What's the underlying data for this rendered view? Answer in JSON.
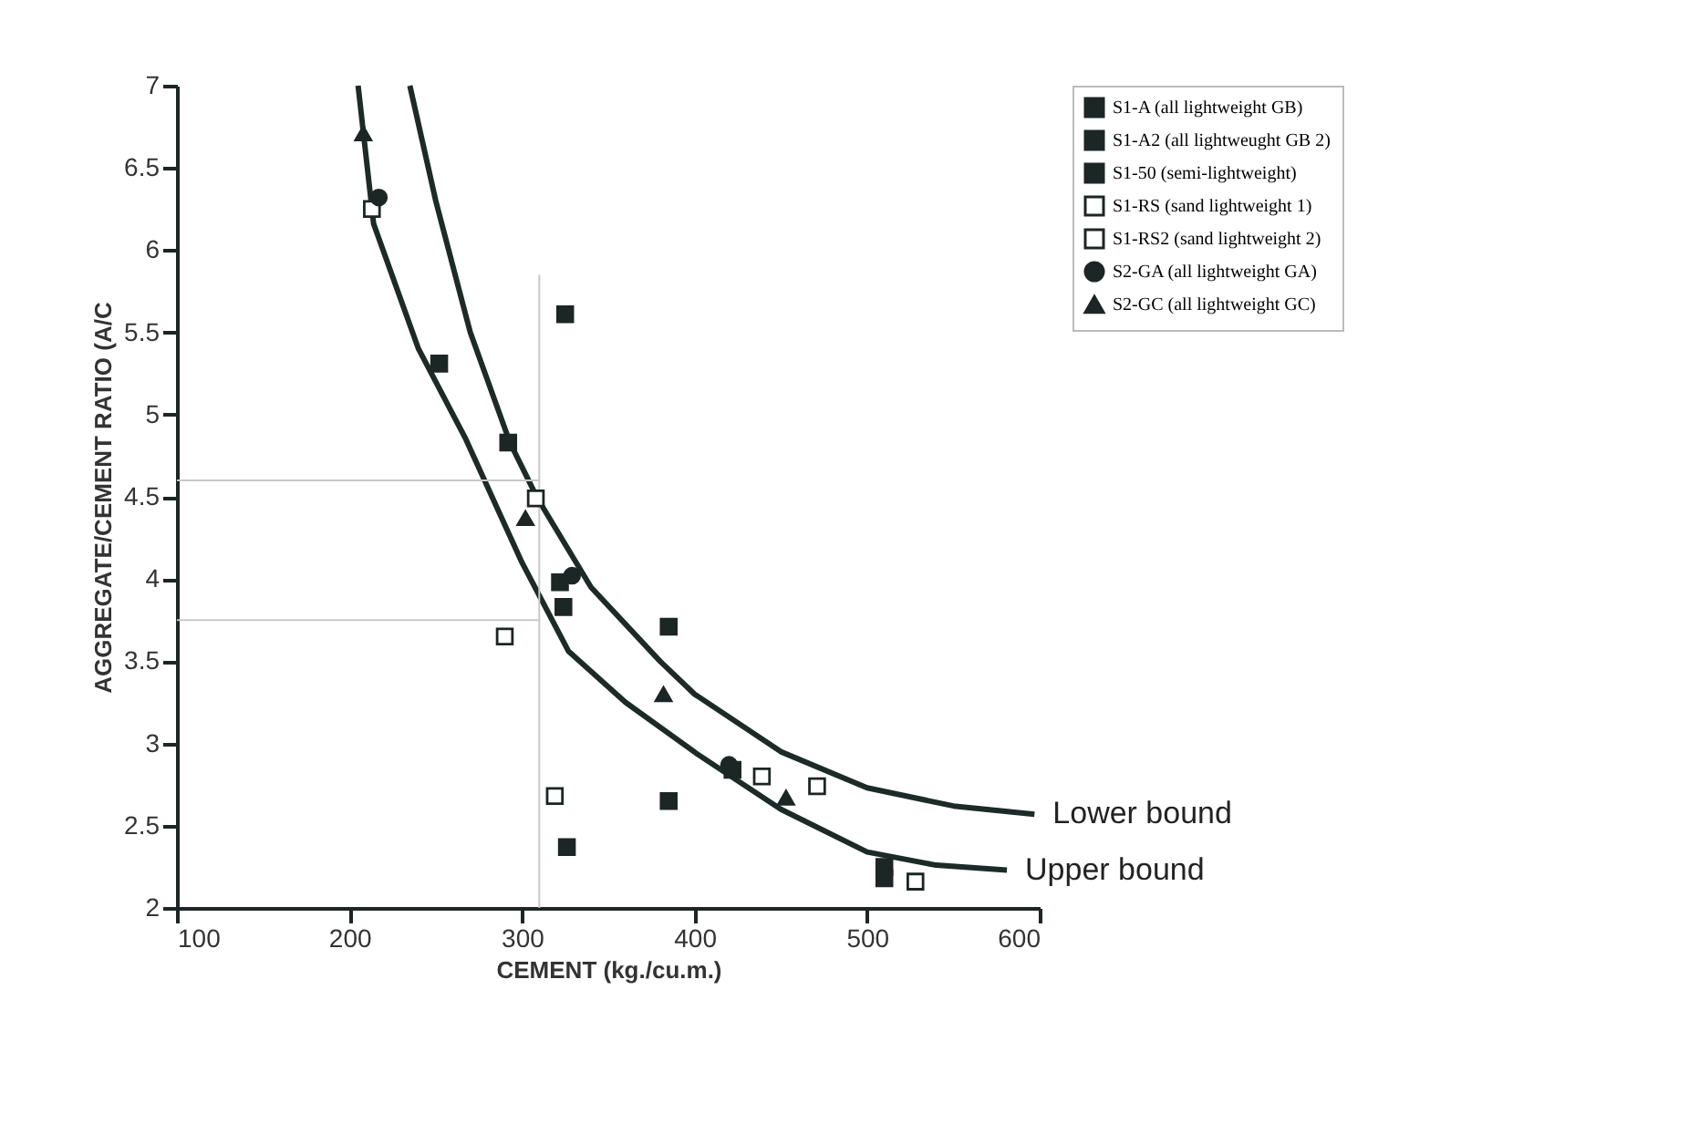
{
  "chart_data": {
    "type": "scatter",
    "xlabel": "CEMENT (kg./cu.m.)",
    "ylabel": "AGGREGATE/CEMENT RATIO (A/C",
    "xlim": [
      100,
      600
    ],
    "xticks": [
      100,
      200,
      300,
      400,
      500,
      600
    ],
    "ylim": [
      2,
      7
    ],
    "yticks": [
      2,
      2.5,
      3,
      3.5,
      4,
      4.5,
      5,
      5.5,
      6,
      6.5,
      7
    ],
    "grid": false,
    "legend": "right",
    "series": [
      {
        "name": "S1-A (all lightweight GB)",
        "marker": "square",
        "color": "#1c2624",
        "x": [
          252,
          325,
          292
        ],
        "values": [
          5.31,
          5.61,
          4.83
        ]
      },
      {
        "name": "S1-A2 (all lightweught GB 2)",
        "marker": "square",
        "color": "#1c2624",
        "x": [
          322,
          324,
          385,
          385
        ],
        "values": [
          3.98,
          3.83,
          3.71,
          2.65
        ]
      },
      {
        "name": "S1-50 (semi-lightweight)",
        "marker": "square",
        "color": "#1c2624",
        "x": [
          326,
          422,
          510,
          510
        ],
        "values": [
          2.37,
          2.84,
          2.25,
          2.18
        ]
      },
      {
        "name": "S1-RS (sand lightweight 1)",
        "marker": "square",
        "color": "#ffffff",
        "x": [
          213,
          290,
          308
        ],
        "values": [
          6.25,
          3.65,
          4.49
        ]
      },
      {
        "name": "S1-RS2 (sand lightweight 2)",
        "marker": "square",
        "color": "#ffffff",
        "x": [
          319,
          439,
          471,
          528
        ],
        "values": [
          2.68,
          2.8,
          2.74,
          2.16
        ]
      },
      {
        "name": "S2-GA (all lightweight GA)",
        "marker": "circle",
        "color": "#1c2624",
        "x": [
          217,
          329,
          420
        ],
        "values": [
          6.32,
          4.02,
          2.87
        ]
      },
      {
        "name": "S2-GC (all lightweight GC)",
        "marker": "triangle",
        "color": "#1c2624",
        "x": [
          208,
          302,
          382,
          453
        ],
        "values": [
          6.71,
          4.37,
          3.3,
          2.67
        ]
      },
      {
        "name": "Lower bound",
        "type": "line",
        "line_style": "solid",
        "color": "#1c2b27",
        "x": [
          235,
          250,
          270,
          293,
          309,
          340,
          380,
          400,
          450,
          500,
          550,
          597
        ],
        "values": [
          7.0,
          6.3,
          5.5,
          4.83,
          4.49,
          3.95,
          3.5,
          3.3,
          2.95,
          2.73,
          2.62,
          2.57
        ]
      },
      {
        "name": "Upper bound",
        "type": "line",
        "line_style": "solid",
        "color": "#1c2b27",
        "x": [
          205,
          214,
          240,
          267,
          300,
          327,
          360,
          401,
          450,
          500,
          540,
          581
        ],
        "values": [
          7.0,
          6.16,
          5.4,
          4.86,
          4.1,
          3.56,
          3.25,
          2.94,
          2.6,
          2.34,
          2.26,
          2.23
        ]
      },
      {
        "type": "line",
        "line_style": "solid",
        "color": "#c8c8c8",
        "x": [
          310,
          310
        ],
        "values": [
          2,
          5.85
        ]
      },
      {
        "type": "line",
        "line_style": "solid",
        "color": "#c8c8c8",
        "x": [
          100,
          310
        ],
        "values": [
          4.6,
          4.6
        ]
      },
      {
        "type": "line",
        "line_style": "solid",
        "color": "#c8c8c8",
        "x": [
          100,
          310
        ],
        "values": [
          3.75,
          3.75
        ]
      }
    ]
  }
}
